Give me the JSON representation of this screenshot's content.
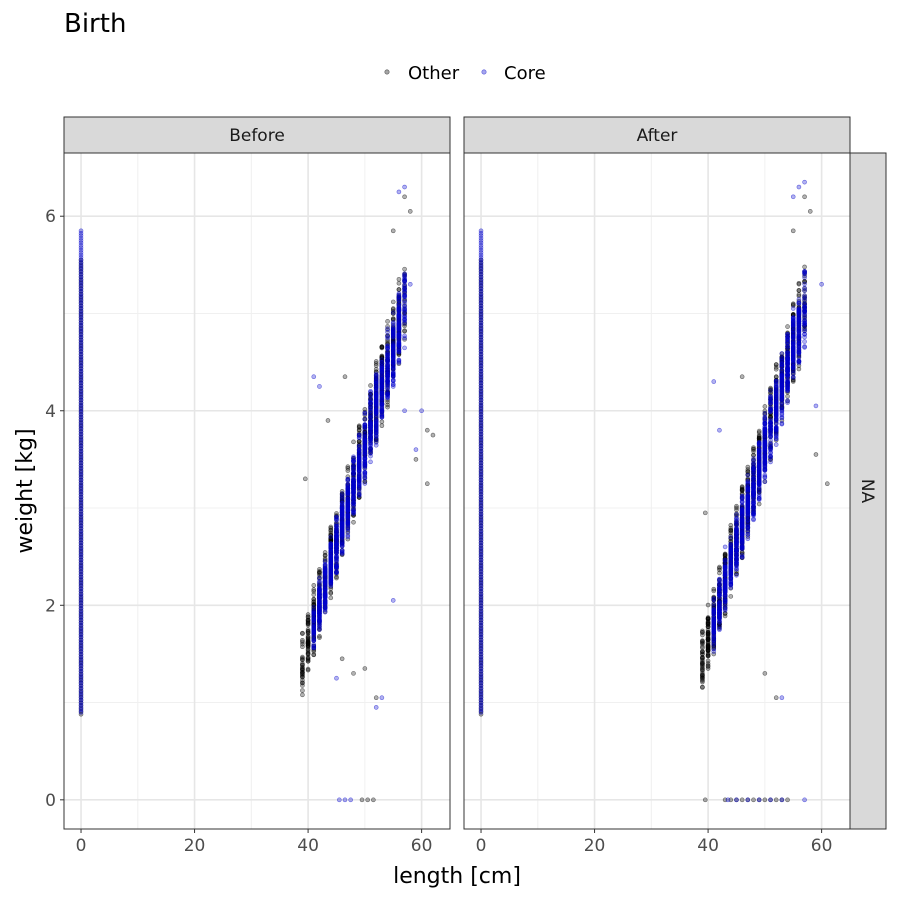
{
  "chart_data": {
    "type": "scatter",
    "title": "Birth",
    "xlabel": "length [cm]",
    "ylabel": "weight [kg]",
    "facets": [
      "Before",
      "After"
    ],
    "row_strip": "NA",
    "xlim": [
      -3,
      65
    ],
    "ylim": [
      -0.3,
      6.65
    ],
    "x_ticks": [
      "0",
      "20",
      "40",
      "60"
    ],
    "y_ticks": [
      "0",
      "2",
      "4",
      "6"
    ],
    "legend": {
      "position": "top",
      "entries": [
        "Other",
        "Core"
      ]
    },
    "grid": true,
    "series": [
      {
        "name": "Other",
        "color": "#000000",
        "band": {
          "x_range": [
            39,
            57
          ],
          "y_at_x_min": [
            1.05,
            1.8
          ],
          "y_at_x_max": [
            4.6,
            5.6
          ]
        },
        "zero_length_column": {
          "x": 0,
          "y_range": [
            0.88,
            5.55
          ]
        },
        "outliers_before": [
          [
            46,
            1.45
          ],
          [
            48,
            1.3
          ],
          [
            50,
            1.35
          ],
          [
            52,
            1.05
          ],
          [
            55,
            5.85
          ],
          [
            57,
            6.2
          ],
          [
            58,
            6.05
          ],
          [
            59,
            3.5
          ],
          [
            61,
            3.8
          ],
          [
            62,
            3.75
          ],
          [
            61,
            3.25
          ],
          [
            46.5,
            4.35
          ],
          [
            43.5,
            3.9
          ],
          [
            39.5,
            3.3
          ]
        ],
        "outliers_after": [
          [
            50,
            1.3
          ],
          [
            52,
            1.05
          ],
          [
            55,
            5.85
          ],
          [
            57,
            6.2
          ],
          [
            58,
            6.05
          ],
          [
            59,
            3.55
          ],
          [
            61,
            3.25
          ],
          [
            39.5,
            2.95
          ],
          [
            46,
            4.35
          ]
        ],
        "zero_weight_before": [
          49.5,
          50.5,
          51.5
        ],
        "zero_weight_after": [
          39.5,
          43,
          44,
          45,
          46,
          47,
          48,
          49,
          50,
          51,
          52,
          53,
          54
        ]
      },
      {
        "name": "Core",
        "color": "#0000cc",
        "band": {
          "x_range": [
            41,
            57
          ],
          "y_at_x_min": [
            1.5,
            2.1
          ],
          "y_at_x_max": [
            4.6,
            5.5
          ]
        },
        "zero_length_column": {
          "x": 0,
          "y_range": [
            0.9,
            5.85
          ]
        },
        "outliers_before": [
          [
            41,
            4.35
          ],
          [
            42,
            4.25
          ],
          [
            45,
            1.25
          ],
          [
            52,
            0.95
          ],
          [
            53,
            1.05
          ],
          [
            56,
            6.25
          ],
          [
            57,
            6.3
          ],
          [
            58,
            5.3
          ],
          [
            57,
            4.0
          ],
          [
            59,
            3.6
          ],
          [
            60,
            4.0
          ],
          [
            55,
            2.05
          ]
        ],
        "outliers_after": [
          [
            41,
            4.3
          ],
          [
            42,
            3.8
          ],
          [
            43,
            2.6
          ],
          [
            53,
            1.05
          ],
          [
            55,
            6.2
          ],
          [
            56,
            6.3
          ],
          [
            57,
            6.35
          ],
          [
            59,
            4.05
          ],
          [
            60,
            5.3
          ]
        ],
        "zero_weight_before": [
          45.5,
          46.5,
          47.5
        ],
        "zero_weight_after": [
          43.5,
          45,
          47,
          49,
          51,
          53,
          57
        ]
      }
    ]
  }
}
